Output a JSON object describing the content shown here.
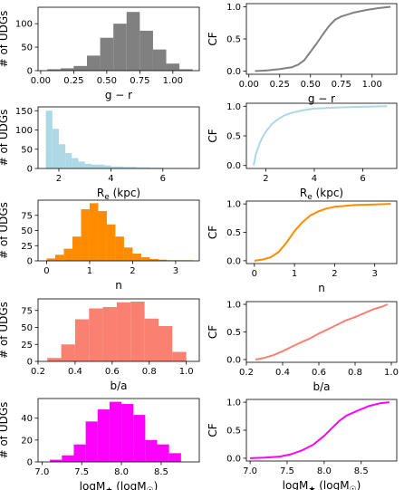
{
  "colors": {
    "gr": "#808080",
    "re": "#add8e6",
    "n": "#ff8c00",
    "ba": "#fa8072",
    "mass": "#ff00ff"
  },
  "chart_data": [
    {
      "id": "gr-hist",
      "type": "bar",
      "series": "gr",
      "xlabel": "g − r",
      "ylabel": "# of UDGs",
      "xlim": [
        -0.02,
        1.2
      ],
      "ylim": [
        0,
        135
      ],
      "xticks": [
        0.0,
        0.25,
        0.5,
        0.75,
        1.0
      ],
      "xtick_labels": [
        "0.00",
        "0.25",
        "0.50",
        "0.75",
        "1.00"
      ],
      "yticks": [
        0,
        50,
        100
      ],
      "ytick_labels": [
        "0",
        "50",
        "100"
      ],
      "bin_edges": [
        0.05,
        0.15,
        0.25,
        0.35,
        0.45,
        0.55,
        0.65,
        0.75,
        0.85,
        0.95,
        1.05,
        1.15
      ],
      "values": [
        3,
        5,
        10,
        32,
        70,
        100,
        125,
        85,
        45,
        15,
        3
      ]
    },
    {
      "id": "gr-cf",
      "type": "line",
      "series": "gr",
      "xlabel": "g − r",
      "ylabel": "CF",
      "xlim": [
        -0.02,
        1.2
      ],
      "ylim": [
        -0.05,
        1.05
      ],
      "xticks": [
        0.0,
        0.25,
        0.5,
        0.75,
        1.0
      ],
      "xtick_labels": [
        "0.00",
        "0.25",
        "0.50",
        "0.75",
        "1.00"
      ],
      "yticks": [
        0.0,
        0.5,
        1.0
      ],
      "ytick_labels": [
        "0.0",
        "0.5",
        "1.0"
      ],
      "x": [
        0.05,
        0.15,
        0.25,
        0.35,
        0.4,
        0.45,
        0.5,
        0.55,
        0.6,
        0.65,
        0.7,
        0.75,
        0.85,
        0.95,
        1.05,
        1.15
      ],
      "y": [
        0.0,
        0.01,
        0.03,
        0.06,
        0.1,
        0.17,
        0.3,
        0.43,
        0.57,
        0.7,
        0.8,
        0.85,
        0.91,
        0.95,
        0.98,
        1.0
      ]
    },
    {
      "id": "re-hist",
      "type": "bar",
      "series": "re",
      "xlabel": "R",
      "xlabel_sub": "e",
      "xlabel_unit": " (kpc)",
      "ylabel": "# of UDGs",
      "xlim": [
        1.2,
        7.4
      ],
      "ylim": [
        0,
        160
      ],
      "xticks": [
        2,
        4,
        6
      ],
      "xtick_labels": [
        "2",
        "4",
        "6"
      ],
      "yticks": [
        0,
        50,
        100,
        150
      ],
      "ytick_labels": [
        "0",
        "50",
        "100",
        "150"
      ],
      "bin_edges": [
        1.5,
        1.75,
        2.0,
        2.25,
        2.5,
        2.75,
        3.0,
        3.25,
        3.5,
        3.75,
        4.0,
        4.5,
        5.0,
        5.5,
        6.0,
        6.5,
        7.0
      ],
      "values": [
        150,
        103,
        63,
        40,
        27,
        18,
        12,
        10,
        10,
        8,
        5,
        4,
        3,
        2,
        1,
        1
      ]
    },
    {
      "id": "re-cf",
      "type": "line",
      "series": "re",
      "xlabel": "R",
      "xlabel_sub": "e",
      "xlabel_unit": " (kpc)",
      "ylabel": "CF",
      "xlim": [
        1.2,
        7.4
      ],
      "ylim": [
        -0.05,
        1.05
      ],
      "xticks": [
        2,
        4,
        6
      ],
      "xtick_labels": [
        "2",
        "4",
        "6"
      ],
      "yticks": [
        0.0,
        0.5,
        1.0
      ],
      "ytick_labels": [
        "0.0",
        "0.5",
        "1.0"
      ],
      "x": [
        1.5,
        1.6,
        1.75,
        1.9,
        2.0,
        2.25,
        2.5,
        2.75,
        3.0,
        3.5,
        4.0,
        5.0,
        6.0,
        7.0
      ],
      "y": [
        0.0,
        0.2,
        0.38,
        0.5,
        0.57,
        0.7,
        0.78,
        0.84,
        0.88,
        0.93,
        0.96,
        0.98,
        0.99,
        1.0
      ]
    },
    {
      "id": "n-hist",
      "type": "bar",
      "series": "n",
      "xlabel": "n",
      "ylabel": "# of UDGs",
      "xlim": [
        -0.2,
        3.55
      ],
      "ylim": [
        0,
        100
      ],
      "xticks": [
        0,
        1,
        2,
        3
      ],
      "xtick_labels": [
        "0",
        "1",
        "2",
        "3"
      ],
      "yticks": [
        0,
        25,
        50,
        75
      ],
      "ytick_labels": [
        "0",
        "25",
        "50",
        "75"
      ],
      "bin_edges": [
        0.0,
        0.2,
        0.4,
        0.6,
        0.8,
        1.0,
        1.2,
        1.4,
        1.6,
        1.8,
        2.0,
        2.2,
        2.4,
        2.6,
        2.8,
        3.0,
        3.2,
        3.4
      ],
      "values": [
        4,
        10,
        20,
        40,
        85,
        95,
        82,
        60,
        40,
        22,
        12,
        6,
        3,
        2,
        1,
        1,
        1
      ]
    },
    {
      "id": "n-cf",
      "type": "line",
      "series": "n",
      "xlabel": "n",
      "ylabel": "CF",
      "xlim": [
        -0.2,
        3.55
      ],
      "ylim": [
        -0.05,
        1.05
      ],
      "xticks": [
        0,
        1,
        2,
        3
      ],
      "xtick_labels": [
        "0",
        "1",
        "2",
        "3"
      ],
      "yticks": [
        0.0,
        0.5,
        1.0
      ],
      "ytick_labels": [
        "0.0",
        "0.5",
        "1.0"
      ],
      "x": [
        0.0,
        0.2,
        0.4,
        0.6,
        0.8,
        1.0,
        1.2,
        1.4,
        1.6,
        1.8,
        2.0,
        2.5,
        3.0,
        3.4
      ],
      "y": [
        0.0,
        0.02,
        0.06,
        0.15,
        0.32,
        0.52,
        0.68,
        0.8,
        0.87,
        0.92,
        0.95,
        0.98,
        0.99,
        1.0
      ]
    },
    {
      "id": "ba-hist",
      "type": "bar",
      "series": "ba",
      "xlabel": "b/a",
      "ylabel": "# of UDGs",
      "xlim": [
        0.2,
        1.07
      ],
      "ylim": [
        0,
        92
      ],
      "xticks": [
        0.2,
        0.4,
        0.6,
        0.8,
        1.0
      ],
      "xtick_labels": [
        "0.2",
        "0.4",
        "0.6",
        "0.8",
        "1.0"
      ],
      "yticks": [
        0,
        25,
        50,
        75
      ],
      "ytick_labels": [
        "0",
        "25",
        "50",
        "75"
      ],
      "bin_edges": [
        0.25,
        0.325,
        0.4,
        0.475,
        0.55,
        0.625,
        0.7,
        0.775,
        0.85,
        0.925,
        1.0
      ],
      "values": [
        5,
        25,
        62,
        78,
        80,
        87,
        88,
        63,
        52,
        14
      ]
    },
    {
      "id": "ba-cf",
      "type": "line",
      "series": "ba",
      "xlabel": "b/a",
      "ylabel": "CF",
      "xlim": [
        0.2,
        1.03
      ],
      "ylim": [
        -0.05,
        1.05
      ],
      "xticks": [
        0.2,
        0.4,
        0.6,
        0.8,
        1.0
      ],
      "xtick_labels": [
        "0.2",
        "0.4",
        "0.6",
        "0.8",
        "1.0"
      ],
      "yticks": [
        0.0,
        0.5,
        1.0
      ],
      "ytick_labels": [
        "0.0",
        "0.5",
        "1.0"
      ],
      "x": [
        0.25,
        0.3,
        0.35,
        0.4,
        0.45,
        0.5,
        0.55,
        0.6,
        0.65,
        0.7,
        0.75,
        0.8,
        0.85,
        0.9,
        0.95,
        0.98
      ],
      "y": [
        0.0,
        0.03,
        0.08,
        0.15,
        0.23,
        0.31,
        0.38,
        0.47,
        0.55,
        0.63,
        0.71,
        0.77,
        0.84,
        0.91,
        0.96,
        1.0
      ]
    },
    {
      "id": "mass-hist",
      "type": "bar",
      "series": "mass",
      "xlabel": "logM",
      "xlabel_sub": "★",
      "xlabel_unit": " (logM",
      "xlabel_unit_sub": "☉",
      "xlabel_unit_end": ")",
      "ylabel": "# of UDGs",
      "xlim": [
        6.95,
        8.98
      ],
      "ylim": [
        0,
        58
      ],
      "xticks": [
        7.0,
        7.5,
        8.0,
        8.5
      ],
      "xtick_labels": [
        "7.0",
        "7.5",
        "8.0",
        "8.5"
      ],
      "yticks": [
        0,
        20,
        40
      ],
      "ytick_labels": [
        "0",
        "20",
        "40"
      ],
      "bin_edges": [
        7.1,
        7.25,
        7.4,
        7.55,
        7.7,
        7.85,
        8.0,
        8.15,
        8.3,
        8.45,
        8.6,
        8.75
      ],
      "values": [
        2,
        6,
        16,
        37,
        48,
        55,
        53,
        43,
        20,
        16,
        8
      ]
    },
    {
      "id": "mass-cf",
      "type": "line",
      "series": "mass",
      "xlabel": "logM",
      "xlabel_sub": "★",
      "xlabel_unit": " (logM",
      "xlabel_unit_sub": "☉",
      "xlabel_unit_end": ")",
      "ylabel": "CF",
      "xlim": [
        6.95,
        8.98
      ],
      "ylim": [
        -0.05,
        1.05
      ],
      "xticks": [
        7.0,
        7.5,
        8.0,
        8.5
      ],
      "xtick_labels": [
        "7.0",
        "7.5",
        "8.0",
        "8.5"
      ],
      "yticks": [
        0.0,
        0.5,
        1.0
      ],
      "ytick_labels": [
        "0.0",
        "0.5",
        "1.0"
      ],
      "x": [
        7.0,
        7.2,
        7.4,
        7.55,
        7.7,
        7.85,
        8.0,
        8.1,
        8.2,
        8.3,
        8.45,
        8.6,
        8.75,
        8.88
      ],
      "y": [
        0.0,
        0.01,
        0.03,
        0.07,
        0.14,
        0.24,
        0.4,
        0.53,
        0.66,
        0.76,
        0.85,
        0.93,
        0.98,
        1.0
      ]
    }
  ]
}
